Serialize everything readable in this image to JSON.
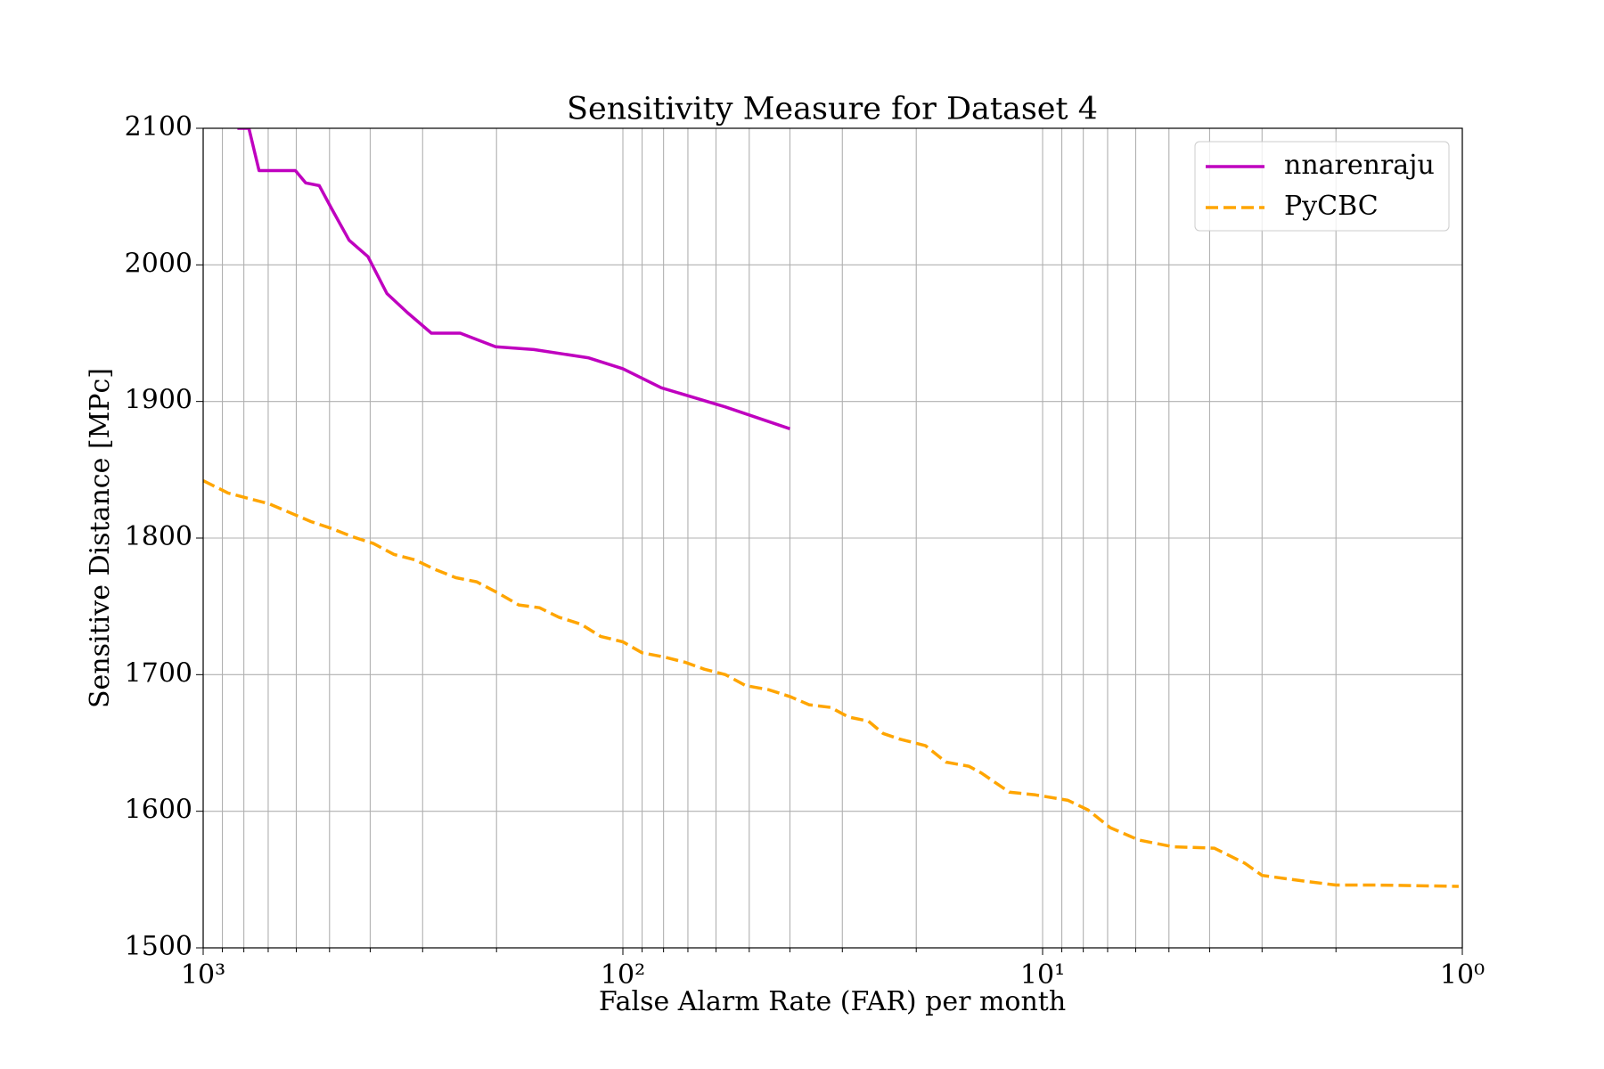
{
  "chart_data": {
    "type": "line",
    "title": "Sensitivity Measure for Dataset 4",
    "x_label": "False Alarm Rate (FAR) per month",
    "y_label": "Sensitive Distance [MPc]",
    "xscale": "log",
    "xlim": [
      1000,
      1
    ],
    "xticks": [
      {
        "value": 1000,
        "label": "10³"
      },
      {
        "value": 100,
        "label": "10²"
      },
      {
        "value": 10,
        "label": "10¹"
      },
      {
        "value": 1,
        "label": "10⁰"
      }
    ],
    "xminorticks": [
      900,
      800,
      700,
      600,
      500,
      400,
      300,
      200,
      90,
      80,
      70,
      60,
      50,
      40,
      30,
      20,
      9,
      8,
      7,
      6,
      5,
      4,
      3,
      2
    ],
    "ylim": [
      1500,
      2100
    ],
    "yticks": [
      1500,
      1600,
      1700,
      1800,
      1900,
      2000,
      2100
    ],
    "grid": true,
    "legend": "upper right",
    "series": [
      {
        "name": "nnarenraju",
        "color": "#bf00bf",
        "linestyle": "solid",
        "x": [
          829,
          778,
          736,
          603,
          570,
          529,
          494,
          449,
          405,
          365,
          326,
          286,
          244,
          201,
          163,
          121,
          100,
          81,
          57,
          40
        ],
        "values": [
          2100,
          2100,
          2069,
          2069,
          2060,
          2058,
          2041,
          2018,
          2006,
          1979,
          1965,
          1950,
          1950,
          1940,
          1938,
          1932,
          1924,
          1910,
          1896,
          1880
        ]
      },
      {
        "name": "PyCBC",
        "color": "#ffa500",
        "linestyle": "dashed",
        "x": [
          1000,
          873,
          695,
          553,
          494,
          441,
          393,
          351,
          313,
          280,
          250,
          223,
          199,
          177,
          158,
          142,
          126,
          113,
          100,
          90,
          80,
          71,
          64,
          57,
          51,
          45,
          40,
          36,
          32,
          29,
          26,
          24,
          22,
          19,
          17,
          15,
          14,
          12,
          10.4,
          8.7,
          7.8,
          6.9,
          5.9,
          4.9,
          3.9,
          3.3,
          3.0,
          2.4,
          2.0,
          1.6,
          1.02
        ],
        "values": [
          1842,
          1833,
          1825,
          1812,
          1807,
          1801,
          1796,
          1788,
          1784,
          1777,
          1771,
          1768,
          1760,
          1751,
          1749,
          1742,
          1737,
          1728,
          1724,
          1716,
          1713,
          1709,
          1704,
          1700,
          1692,
          1689,
          1684,
          1678,
          1676,
          1669,
          1666,
          1657,
          1653,
          1648,
          1636,
          1633,
          1628,
          1614,
          1612,
          1608,
          1601,
          1588,
          1579,
          1574,
          1573,
          1562,
          1553,
          1549,
          1546,
          1546,
          1545
        ]
      }
    ]
  }
}
